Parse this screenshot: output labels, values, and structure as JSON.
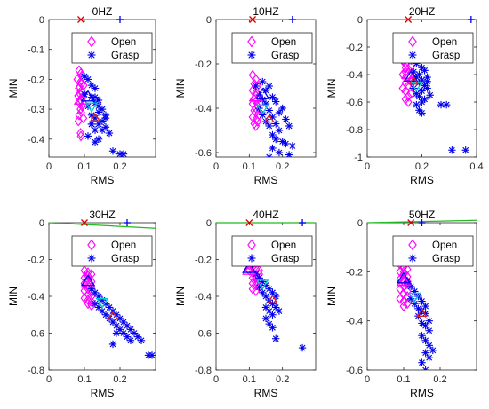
{
  "chart_data": [
    {
      "type": "scatter",
      "title": "0HZ",
      "xlabel": "RMS",
      "ylabel": "MIN",
      "xlim": [
        0,
        0.3
      ],
      "ylim": [
        -0.46,
        0
      ],
      "xticks": [
        0,
        0.1,
        0.2
      ],
      "xtick_labels": [
        "0",
        "0.1",
        "0.2"
      ],
      "yticks": [
        0,
        -0.1,
        -0.2,
        -0.3,
        -0.4
      ],
      "ytick_labels": [
        "0",
        "-0.1",
        "-0.2",
        "-0.3",
        "-0.4"
      ],
      "legend": {
        "entries": [
          "Open",
          "Grasp"
        ],
        "placement": "top-right"
      },
      "markers": {
        "open_center": [
          0.09,
          -0.27
        ],
        "grasp_center": [
          0.11,
          -0.26
        ],
        "boundary_center": [
          0.12,
          -0.29
        ],
        "red_center": [
          0.13,
          -0.33
        ]
      },
      "boundary_line": {
        "x": [
          0,
          0.3
        ],
        "y": [
          0,
          0
        ]
      },
      "top_markers": {
        "red_x": 0.09,
        "blue_plus": 0.2
      },
      "series": [
        {
          "name": "Open",
          "color": "#ff00ff",
          "marker": "diamond",
          "x": [
            0.085,
            0.09,
            0.095,
            0.08,
            0.088,
            0.092,
            0.098,
            0.086,
            0.084,
            0.09,
            0.094,
            0.088,
            0.082,
            0.096,
            0.09,
            0.087,
            0.093,
            0.089,
            0.091,
            0.085,
            0.097,
            0.083,
            0.089,
            0.09
          ],
          "y": [
            -0.17,
            -0.18,
            -0.19,
            -0.2,
            -0.21,
            -0.215,
            -0.22,
            -0.225,
            -0.23,
            -0.24,
            -0.245,
            -0.25,
            -0.255,
            -0.26,
            -0.27,
            -0.28,
            -0.29,
            -0.3,
            -0.31,
            -0.32,
            -0.33,
            -0.34,
            -0.38,
            -0.39
          ]
        },
        {
          "name": "Grasp",
          "color": "#0000ee",
          "marker": "asterisk",
          "x": [
            0.1,
            0.11,
            0.12,
            0.13,
            0.1,
            0.12,
            0.14,
            0.13,
            0.11,
            0.15,
            0.14,
            0.12,
            0.16,
            0.13,
            0.15,
            0.12,
            0.14,
            0.16,
            0.13,
            0.15,
            0.17,
            0.11,
            0.14,
            0.13,
            0.12,
            0.16,
            0.14,
            0.13,
            0.18,
            0.2,
            0.21
          ],
          "y": [
            -0.19,
            -0.2,
            -0.22,
            -0.23,
            -0.25,
            -0.26,
            -0.27,
            -0.28,
            -0.29,
            -0.3,
            -0.31,
            -0.32,
            -0.32,
            -0.33,
            -0.34,
            -0.35,
            -0.35,
            -0.36,
            -0.37,
            -0.37,
            -0.38,
            -0.39,
            -0.4,
            -0.41,
            -0.35,
            -0.33,
            -0.29,
            -0.26,
            -0.44,
            -0.45,
            -0.45
          ]
        }
      ]
    },
    {
      "type": "scatter",
      "title": "10HZ",
      "xlabel": "RMS",
      "ylabel": "MIN",
      "xlim": [
        0,
        0.3
      ],
      "ylim": [
        -0.62,
        0
      ],
      "xticks": [
        0,
        0.1,
        0.2
      ],
      "xtick_labels": [
        "0",
        "0.1",
        "0.2"
      ],
      "yticks": [
        0,
        -0.2,
        -0.4,
        -0.6
      ],
      "ytick_labels": [
        "0",
        "-0.2",
        "-0.4",
        "-0.6"
      ],
      "legend": {
        "entries": [
          "Open",
          "Grasp"
        ],
        "placement": "top-right"
      },
      "markers": {
        "open_center": [
          0.12,
          -0.35
        ],
        "grasp_center": [
          0.14,
          -0.34
        ],
        "boundary_center": [
          0.14,
          -0.4
        ],
        "red_center": [
          0.16,
          -0.45
        ]
      },
      "boundary_line": {
        "x": [
          0,
          0.3
        ],
        "y": [
          0,
          0
        ]
      },
      "top_markers": {
        "red_x": 0.11,
        "blue_plus": 0.23
      },
      "series": [
        {
          "name": "Open",
          "color": "#ff00ff",
          "marker": "diamond",
          "x": [
            0.11,
            0.12,
            0.115,
            0.125,
            0.11,
            0.12,
            0.13,
            0.115,
            0.12,
            0.11,
            0.125,
            0.12,
            0.115,
            0.12,
            0.13,
            0.11,
            0.12,
            0.125,
            0.115,
            0.12
          ],
          "y": [
            -0.25,
            -0.27,
            -0.29,
            -0.3,
            -0.32,
            -0.33,
            -0.35,
            -0.36,
            -0.37,
            -0.38,
            -0.39,
            -0.4,
            -0.41,
            -0.42,
            -0.43,
            -0.44,
            -0.45,
            -0.46,
            -0.47,
            -0.48
          ]
        },
        {
          "name": "Grasp",
          "color": "#0000ee",
          "marker": "asterisk",
          "x": [
            0.12,
            0.14,
            0.15,
            0.13,
            0.16,
            0.14,
            0.17,
            0.15,
            0.13,
            0.18,
            0.16,
            0.14,
            0.19,
            0.17,
            0.15,
            0.2,
            0.18,
            0.16,
            0.21,
            0.19,
            0.17,
            0.22,
            0.2,
            0.18,
            0.21,
            0.19,
            0.17,
            0.16,
            0.23,
            0.22
          ],
          "y": [
            -0.3,
            -0.28,
            -0.32,
            -0.34,
            -0.3,
            -0.36,
            -0.35,
            -0.38,
            -0.4,
            -0.37,
            -0.41,
            -0.43,
            -0.42,
            -0.44,
            -0.46,
            -0.4,
            -0.47,
            -0.48,
            -0.45,
            -0.5,
            -0.52,
            -0.48,
            -0.55,
            -0.54,
            -0.56,
            -0.6,
            -0.58,
            -0.62,
            -0.57,
            -0.61
          ]
        }
      ]
    },
    {
      "type": "scatter",
      "title": "20HZ",
      "xlabel": "RMS",
      "ylabel": "MIN",
      "xlim": [
        0,
        0.4
      ],
      "ylim": [
        -1,
        0
      ],
      "xticks": [
        0,
        0.2,
        0.4
      ],
      "xtick_labels": [
        "0",
        "0.2",
        "0.4"
      ],
      "yticks": [
        0,
        -0.2,
        -0.4,
        -0.6,
        -0.8,
        -1
      ],
      "ytick_labels": [
        "0",
        "-0.2",
        "-0.4",
        "-0.6",
        "-0.8",
        "-1"
      ],
      "legend": {
        "entries": [
          "Open",
          "Grasp"
        ],
        "placement": "top-right"
      },
      "markers": {
        "open_center": [
          0.15,
          -0.4
        ],
        "grasp_center": [
          0.16,
          -0.42
        ],
        "boundary_center": [
          0.18,
          -0.48
        ],
        "red_center": [
          0.17,
          -0.45
        ]
      },
      "boundary_line": {
        "x": [
          0,
          0.4
        ],
        "y": [
          0,
          0
        ]
      },
      "top_markers": {
        "red_x": 0.15,
        "blue_plus": 0.38
      },
      "series": [
        {
          "name": "Open",
          "color": "#ff00ff",
          "marker": "diamond",
          "x": [
            0.13,
            0.14,
            0.15,
            0.13,
            0.14,
            0.16,
            0.15,
            0.14,
            0.13,
            0.15,
            0.16,
            0.14,
            0.15,
            0.13,
            0.14,
            0.16,
            0.15,
            0.14,
            0.15,
            0.16,
            0.14,
            0.13
          ],
          "y": [
            -0.22,
            -0.25,
            -0.28,
            -0.3,
            -0.32,
            -0.34,
            -0.36,
            -0.38,
            -0.4,
            -0.42,
            -0.44,
            -0.46,
            -0.48,
            -0.5,
            -0.52,
            -0.54,
            -0.56,
            -0.58,
            -0.6,
            -0.45,
            -0.35,
            -0.27
          ]
        },
        {
          "name": "Grasp",
          "color": "#0000ee",
          "marker": "asterisk",
          "x": [
            0.16,
            0.18,
            0.2,
            0.17,
            0.19,
            0.21,
            0.18,
            0.2,
            0.22,
            0.19,
            0.21,
            0.17,
            0.2,
            0.18,
            0.22,
            0.19,
            0.21,
            0.23,
            0.2,
            0.18,
            0.22,
            0.27,
            0.29,
            0.19,
            0.2,
            0.31,
            0.36
          ],
          "y": [
            -0.3,
            -0.32,
            -0.35,
            -0.38,
            -0.4,
            -0.37,
            -0.42,
            -0.44,
            -0.42,
            -0.46,
            -0.48,
            -0.5,
            -0.52,
            -0.54,
            -0.5,
            -0.56,
            -0.58,
            -0.55,
            -0.6,
            -0.62,
            -0.45,
            -0.62,
            -0.62,
            -0.66,
            -0.68,
            -0.95,
            -0.95
          ]
        }
      ]
    },
    {
      "type": "scatter",
      "title": "30HZ",
      "xlabel": "RMS",
      "ylabel": "MIN",
      "xlim": [
        0,
        0.3
      ],
      "ylim": [
        -0.8,
        0
      ],
      "xticks": [
        0,
        0.1,
        0.2
      ],
      "xtick_labels": [
        "0",
        "0.1",
        "0.2"
      ],
      "yticks": [
        0,
        -0.2,
        -0.4,
        -0.6,
        -0.8
      ],
      "ytick_labels": [
        "0",
        "-0.2",
        "-0.4",
        "-0.6",
        "-0.8"
      ],
      "legend": {
        "entries": [
          "Open",
          "Grasp"
        ],
        "placement": "top-right"
      },
      "markers": {
        "open_center": [
          0.11,
          -0.33
        ],
        "grasp_center": [
          0.11,
          -0.32
        ],
        "boundary_center": [
          0.15,
          -0.43
        ],
        "red_center": [
          0.18,
          -0.51
        ]
      },
      "boundary_line": {
        "x": [
          0,
          0.3
        ],
        "y": [
          0,
          -0.03
        ]
      },
      "top_markers": {
        "red_x": 0.1,
        "blue_plus": 0.22
      },
      "series": [
        {
          "name": "Open",
          "color": "#ff00ff",
          "marker": "diamond",
          "x": [
            0.1,
            0.11,
            0.12,
            0.1,
            0.11,
            0.12,
            0.1,
            0.11,
            0.12,
            0.11,
            0.1,
            0.12,
            0.11,
            0.12,
            0.1,
            0.11,
            0.12,
            0.11,
            0.12,
            0.11
          ],
          "y": [
            -0.26,
            -0.27,
            -0.28,
            -0.3,
            -0.31,
            -0.32,
            -0.33,
            -0.34,
            -0.35,
            -0.36,
            -0.37,
            -0.38,
            -0.39,
            -0.4,
            -0.41,
            -0.42,
            -0.43,
            -0.44,
            -0.45,
            -0.29
          ]
        },
        {
          "name": "Grasp",
          "color": "#0000ee",
          "marker": "asterisk",
          "x": [
            0.12,
            0.13,
            0.14,
            0.15,
            0.13,
            0.16,
            0.14,
            0.17,
            0.15,
            0.18,
            0.16,
            0.19,
            0.17,
            0.2,
            0.18,
            0.21,
            0.19,
            0.22,
            0.2,
            0.23,
            0.21,
            0.24,
            0.22,
            0.25,
            0.23,
            0.26,
            0.19,
            0.18,
            0.28,
            0.29
          ],
          "y": [
            -0.36,
            -0.38,
            -0.4,
            -0.42,
            -0.44,
            -0.44,
            -0.46,
            -0.46,
            -0.48,
            -0.48,
            -0.5,
            -0.5,
            -0.52,
            -0.52,
            -0.54,
            -0.54,
            -0.56,
            -0.56,
            -0.58,
            -0.58,
            -0.6,
            -0.6,
            -0.62,
            -0.62,
            -0.64,
            -0.64,
            -0.6,
            -0.66,
            -0.72,
            -0.72
          ]
        }
      ]
    },
    {
      "type": "scatter",
      "title": "40HZ",
      "xlabel": "RMS",
      "ylabel": "MIN",
      "xlim": [
        0,
        0.3
      ],
      "ylim": [
        -0.8,
        0
      ],
      "xticks": [
        0,
        0.1,
        0.2
      ],
      "xtick_labels": [
        "0",
        "0.1",
        "0.2"
      ],
      "yticks": [
        0,
        -0.2,
        -0.4,
        -0.6,
        -0.8
      ],
      "ytick_labels": [
        "0",
        "-0.2",
        "-0.4",
        "-0.6",
        "-0.8"
      ],
      "legend": {
        "entries": [
          "Open",
          "Grasp"
        ],
        "placement": "top-right"
      },
      "markers": {
        "open_center": [
          0.1,
          -0.26
        ],
        "grasp_center": [
          0.1,
          -0.25
        ],
        "boundary_center": [
          0.14,
          -0.33
        ],
        "red_center": [
          0.17,
          -0.42
        ]
      },
      "boundary_line": {
        "x": [
          0,
          0.3
        ],
        "y": [
          0,
          0
        ]
      },
      "top_markers": {
        "red_x": 0.1,
        "blue_plus": 0.26
      },
      "series": [
        {
          "name": "Open",
          "color": "#ff00ff",
          "marker": "diamond",
          "x": [
            0.1,
            0.11,
            0.12,
            0.1,
            0.11,
            0.12,
            0.1,
            0.11,
            0.13,
            0.12,
            0.11,
            0.13,
            0.12,
            0.11,
            0.12,
            0.13,
            0.11,
            0.12,
            0.12,
            0.13
          ],
          "y": [
            -0.2,
            -0.21,
            -0.22,
            -0.23,
            -0.24,
            -0.25,
            -0.26,
            -0.27,
            -0.28,
            -0.29,
            -0.3,
            -0.31,
            -0.32,
            -0.33,
            -0.34,
            -0.35,
            -0.36,
            -0.37,
            -0.3,
            -0.26
          ]
        },
        {
          "name": "Grasp",
          "color": "#0000ee",
          "marker": "asterisk",
          "x": [
            0.12,
            0.13,
            0.14,
            0.15,
            0.13,
            0.16,
            0.14,
            0.17,
            0.15,
            0.18,
            0.16,
            0.17,
            0.15,
            0.18,
            0.16,
            0.19,
            0.17,
            0.15,
            0.16,
            0.17,
            0.18,
            0.26
          ],
          "y": [
            -0.28,
            -0.3,
            -0.32,
            -0.34,
            -0.35,
            -0.36,
            -0.38,
            -0.38,
            -0.4,
            -0.4,
            -0.42,
            -0.44,
            -0.46,
            -0.46,
            -0.48,
            -0.48,
            -0.5,
            -0.52,
            -0.55,
            -0.57,
            -0.63,
            -0.68
          ]
        }
      ]
    },
    {
      "type": "scatter",
      "title": "50HZ",
      "xlabel": "RMS",
      "ylabel": "MIN",
      "xlim": [
        0,
        0.3
      ],
      "ylim": [
        -0.6,
        0
      ],
      "xticks": [
        0,
        0.1,
        0.2
      ],
      "xtick_labels": [
        "0",
        "0.1",
        "0.2"
      ],
      "yticks": [
        0,
        -0.2,
        -0.4,
        -0.6
      ],
      "ytick_labels": [
        "0",
        "-0.2",
        "-0.4",
        "-0.6"
      ],
      "legend": {
        "entries": [
          "Open",
          "Grasp"
        ],
        "placement": "top-right"
      },
      "markers": {
        "open_center": [
          0.1,
          -0.24
        ],
        "grasp_center": [
          0.1,
          -0.23
        ],
        "boundary_center": [
          0.13,
          -0.3
        ],
        "red_center": [
          0.15,
          -0.37
        ]
      },
      "boundary_line": {
        "x": [
          0,
          0.3
        ],
        "y": [
          0,
          0.01
        ]
      },
      "top_markers": {
        "red_x": 0.12,
        "blue_plus": 0.15
      },
      "series": [
        {
          "name": "Open",
          "color": "#ff00ff",
          "marker": "diamond",
          "x": [
            0.09,
            0.1,
            0.11,
            0.09,
            0.1,
            0.11,
            0.09,
            0.1,
            0.11,
            0.1,
            0.09,
            0.11,
            0.1,
            0.11,
            0.09,
            0.1,
            0.11,
            0.1,
            0.1,
            0.11
          ],
          "y": [
            -0.17,
            -0.18,
            -0.19,
            -0.2,
            -0.21,
            -0.22,
            -0.23,
            -0.24,
            -0.25,
            -0.26,
            -0.27,
            -0.28,
            -0.29,
            -0.3,
            -0.31,
            -0.32,
            -0.33,
            -0.34,
            -0.2,
            -0.24
          ]
        },
        {
          "name": "Grasp",
          "color": "#0000ee",
          "marker": "asterisk",
          "x": [
            0.11,
            0.12,
            0.13,
            0.14,
            0.12,
            0.15,
            0.13,
            0.16,
            0.14,
            0.15,
            0.16,
            0.14,
            0.17,
            0.15,
            0.16,
            0.17,
            0.15,
            0.16,
            0.17,
            0.18,
            0.16,
            0.17,
            0.15,
            0.16
          ],
          "y": [
            -0.24,
            -0.26,
            -0.28,
            -0.3,
            -0.31,
            -0.32,
            -0.33,
            -0.34,
            -0.35,
            -0.36,
            -0.37,
            -0.38,
            -0.4,
            -0.41,
            -0.42,
            -0.44,
            -0.46,
            -0.48,
            -0.5,
            -0.52,
            -0.53,
            -0.55,
            -0.57,
            -0.6
          ]
        }
      ]
    }
  ]
}
